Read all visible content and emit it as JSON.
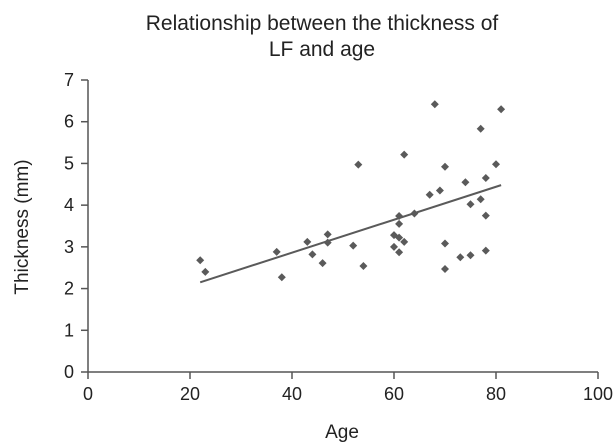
{
  "chart_data": {
    "type": "scatter",
    "title": [
      "Relationship between the thickness of",
      "LF and age"
    ],
    "xlabel": "Age",
    "ylabel": "Thickness (mm)",
    "xlim": [
      0,
      100
    ],
    "ylim": [
      0,
      7
    ],
    "x_ticks": [
      0,
      20,
      40,
      60,
      80,
      100
    ],
    "y_ticks": [
      0,
      1,
      2,
      3,
      4,
      5,
      6,
      7
    ],
    "grid": false,
    "legend": "none",
    "colors": {
      "points": "#5a5a5a",
      "trendline": "#5a5a5a",
      "axes": "#555555"
    },
    "points": [
      {
        "x": 22,
        "y": 2.68
      },
      {
        "x": 23,
        "y": 2.4
      },
      {
        "x": 37,
        "y": 2.88
      },
      {
        "x": 38,
        "y": 2.27
      },
      {
        "x": 43,
        "y": 3.12
      },
      {
        "x": 44,
        "y": 2.82
      },
      {
        "x": 46,
        "y": 2.61
      },
      {
        "x": 47,
        "y": 3.3
      },
      {
        "x": 47,
        "y": 3.1
      },
      {
        "x": 52,
        "y": 3.03
      },
      {
        "x": 53,
        "y": 4.97
      },
      {
        "x": 54,
        "y": 2.54
      },
      {
        "x": 60,
        "y": 3.28
      },
      {
        "x": 60,
        "y": 3.0
      },
      {
        "x": 61,
        "y": 3.74
      },
      {
        "x": 61,
        "y": 3.55
      },
      {
        "x": 61,
        "y": 3.22
      },
      {
        "x": 61,
        "y": 2.87
      },
      {
        "x": 62,
        "y": 5.21
      },
      {
        "x": 62,
        "y": 3.12
      },
      {
        "x": 64,
        "y": 3.8
      },
      {
        "x": 67,
        "y": 4.25
      },
      {
        "x": 68,
        "y": 6.42
      },
      {
        "x": 69,
        "y": 4.35
      },
      {
        "x": 70,
        "y": 4.92
      },
      {
        "x": 70,
        "y": 3.08
      },
      {
        "x": 70,
        "y": 2.47
      },
      {
        "x": 73,
        "y": 2.75
      },
      {
        "x": 74,
        "y": 4.55
      },
      {
        "x": 75,
        "y": 4.02
      },
      {
        "x": 75,
        "y": 2.8
      },
      {
        "x": 77,
        "y": 5.83
      },
      {
        "x": 77,
        "y": 4.14
      },
      {
        "x": 78,
        "y": 4.65
      },
      {
        "x": 78,
        "y": 3.75
      },
      {
        "x": 78,
        "y": 2.91
      },
      {
        "x": 80,
        "y": 4.98
      },
      {
        "x": 81,
        "y": 6.3
      }
    ],
    "trendline": {
      "x": [
        22,
        81
      ],
      "y": [
        2.15,
        4.48
      ]
    }
  }
}
